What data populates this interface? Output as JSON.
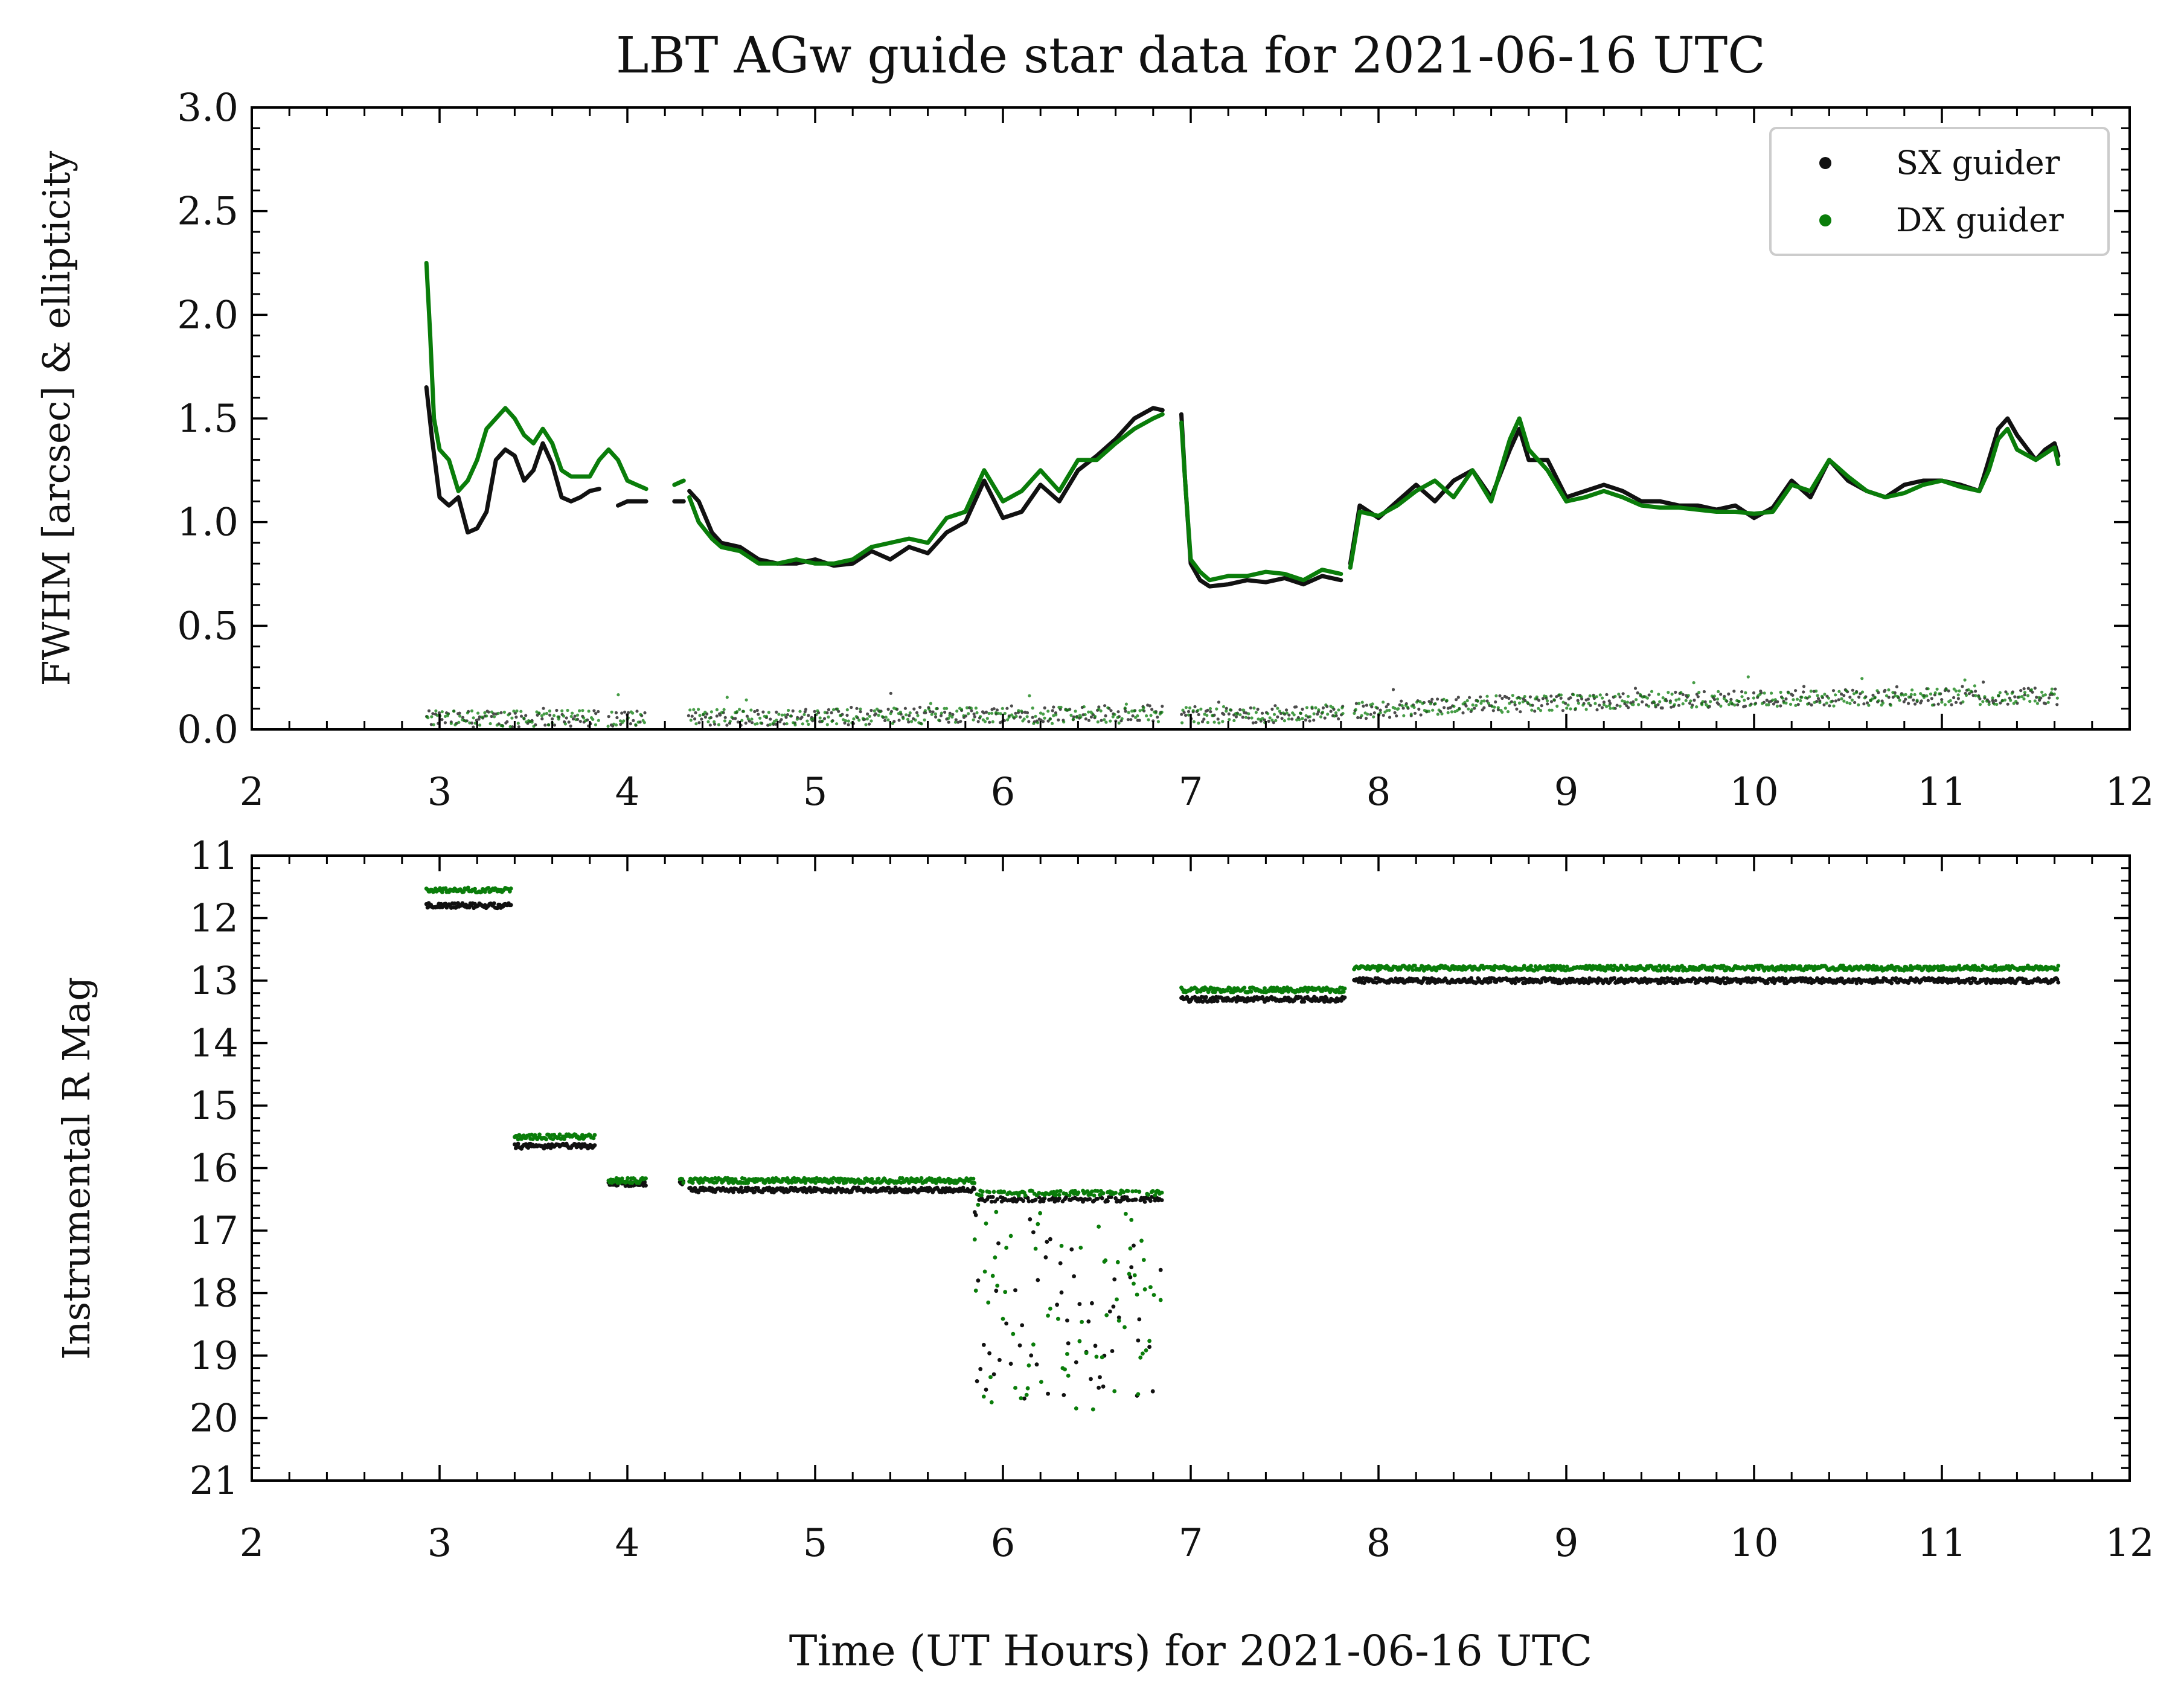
{
  "figure": {
    "title": "LBT AGw guide star data for 2021-06-16 UTC",
    "xlabel": "Time (UT Hours) for 2021-06-16 UTC"
  },
  "colors": {
    "sx": "#111111",
    "dx": "#0a7d0a",
    "legend_border": "#cccccc"
  },
  "legend": {
    "items": [
      {
        "label": "SX guider",
        "color": "#111111"
      },
      {
        "label": "DX guider",
        "color": "#0a7d0a"
      }
    ],
    "placement": "top-right"
  },
  "chart_data": [
    {
      "type": "line",
      "ylabel": "FWHM [arcsec] & ellipticity",
      "xlim": [
        2,
        12
      ],
      "ylim": [
        0,
        3.0
      ],
      "xticks": [
        2,
        3,
        4,
        5,
        6,
        7,
        8,
        9,
        10,
        11,
        12
      ],
      "yticks": [
        0.0,
        0.5,
        1.0,
        1.5,
        2.0,
        2.5,
        3.0
      ],
      "ytick_labels": [
        "0.0",
        "0.5",
        "1.0",
        "1.5",
        "2.0",
        "2.5",
        "3.0"
      ],
      "grid": false,
      "series": [
        {
          "name": "SX guider",
          "style": "line",
          "segments": [
            {
              "x": [
                2.93,
                2.96,
                3.0,
                3.05,
                3.1,
                3.15,
                3.2,
                3.25,
                3.3,
                3.35,
                3.4,
                3.45,
                3.5,
                3.55,
                3.6,
                3.65,
                3.7,
                3.75,
                3.8,
                3.85
              ],
              "y": [
                1.65,
                1.4,
                1.12,
                1.08,
                1.12,
                0.95,
                0.97,
                1.05,
                1.3,
                1.35,
                1.32,
                1.2,
                1.25,
                1.38,
                1.28,
                1.12,
                1.1,
                1.12,
                1.15,
                1.16
              ]
            },
            {
              "x": [
                3.95,
                4.0,
                4.1
              ],
              "y": [
                1.08,
                1.1,
                1.1
              ]
            },
            {
              "x": [
                4.25,
                4.3
              ],
              "y": [
                1.1,
                1.1
              ]
            },
            {
              "x": [
                4.33,
                4.38,
                4.45,
                4.5,
                4.6,
                4.7,
                4.8,
                4.9,
                5.0,
                5.1,
                5.2,
                5.3,
                5.4,
                5.5,
                5.6,
                5.7,
                5.8,
                5.9,
                6.0,
                6.1,
                6.2,
                6.3,
                6.4,
                6.5,
                6.6,
                6.7,
                6.8,
                6.85
              ],
              "y": [
                1.15,
                1.1,
                0.95,
                0.9,
                0.88,
                0.82,
                0.8,
                0.8,
                0.82,
                0.79,
                0.8,
                0.86,
                0.82,
                0.88,
                0.85,
                0.95,
                1.0,
                1.2,
                1.02,
                1.05,
                1.18,
                1.1,
                1.25,
                1.32,
                1.4,
                1.5,
                1.55,
                1.54
              ]
            },
            {
              "x": [
                6.95,
                6.97,
                7.0,
                7.05,
                7.1,
                7.2,
                7.3,
                7.4,
                7.5,
                7.6,
                7.7,
                7.8
              ],
              "y": [
                1.52,
                1.2,
                0.8,
                0.72,
                0.69,
                0.7,
                0.72,
                0.71,
                0.73,
                0.7,
                0.74,
                0.72
              ]
            },
            {
              "x": [
                7.85,
                7.9,
                8.0,
                8.1,
                8.2,
                8.3,
                8.4,
                8.5,
                8.6,
                8.7,
                8.75,
                8.8,
                8.9,
                9.0,
                9.1,
                9.2,
                9.3,
                9.4,
                9.5,
                9.6,
                9.7,
                9.8,
                9.9,
                10.0,
                10.1,
                10.2,
                10.3,
                10.4,
                10.5,
                10.6,
                10.7,
                10.8,
                10.9,
                11.0,
                11.1,
                11.2,
                11.25,
                11.3,
                11.35,
                11.4,
                11.5,
                11.55,
                11.6,
                11.62
              ],
              "y": [
                0.8,
                1.08,
                1.02,
                1.1,
                1.18,
                1.1,
                1.2,
                1.25,
                1.12,
                1.35,
                1.45,
                1.3,
                1.3,
                1.12,
                1.15,
                1.18,
                1.15,
                1.1,
                1.1,
                1.08,
                1.08,
                1.06,
                1.08,
                1.02,
                1.07,
                1.2,
                1.12,
                1.3,
                1.2,
                1.15,
                1.12,
                1.18,
                1.2,
                1.2,
                1.18,
                1.15,
                1.3,
                1.45,
                1.5,
                1.42,
                1.3,
                1.35,
                1.38,
                1.32
              ]
            }
          ]
        },
        {
          "name": "DX guider",
          "style": "line",
          "segments": [
            {
              "x": [
                2.93,
                2.95,
                2.97,
                3.0,
                3.05,
                3.1,
                3.15,
                3.2,
                3.25,
                3.3,
                3.35,
                3.4,
                3.45,
                3.5,
                3.55,
                3.6,
                3.65,
                3.7,
                3.75,
                3.8,
                3.85,
                3.9,
                3.95,
                4.0,
                4.05,
                4.1
              ],
              "y": [
                2.25,
                1.9,
                1.5,
                1.35,
                1.3,
                1.15,
                1.2,
                1.3,
                1.45,
                1.5,
                1.55,
                1.5,
                1.42,
                1.38,
                1.45,
                1.38,
                1.25,
                1.22,
                1.22,
                1.22,
                1.3,
                1.35,
                1.3,
                1.2,
                1.18,
                1.16
              ]
            },
            {
              "x": [
                4.25,
                4.3
              ],
              "y": [
                1.18,
                1.2
              ]
            },
            {
              "x": [
                4.33,
                4.38,
                4.45,
                4.5,
                4.6,
                4.7,
                4.8,
                4.9,
                5.0,
                5.1,
                5.2,
                5.3,
                5.4,
                5.5,
                5.6,
                5.7,
                5.8,
                5.9,
                6.0,
                6.1,
                6.2,
                6.3,
                6.4,
                6.5,
                6.6,
                6.7,
                6.8,
                6.85
              ],
              "y": [
                1.12,
                1.0,
                0.92,
                0.88,
                0.86,
                0.8,
                0.8,
                0.82,
                0.8,
                0.8,
                0.82,
                0.88,
                0.9,
                0.92,
                0.9,
                1.02,
                1.05,
                1.25,
                1.1,
                1.15,
                1.25,
                1.15,
                1.3,
                1.3,
                1.38,
                1.45,
                1.5,
                1.52
              ]
            },
            {
              "x": [
                6.95,
                6.97,
                7.0,
                7.05,
                7.1,
                7.2,
                7.3,
                7.4,
                7.5,
                7.6,
                7.7,
                7.8
              ],
              "y": [
                1.48,
                1.2,
                0.82,
                0.76,
                0.72,
                0.74,
                0.74,
                0.76,
                0.75,
                0.72,
                0.77,
                0.75
              ]
            },
            {
              "x": [
                7.85,
                7.9,
                8.0,
                8.1,
                8.2,
                8.3,
                8.4,
                8.5,
                8.6,
                8.7,
                8.75,
                8.8,
                8.9,
                9.0,
                9.1,
                9.2,
                9.3,
                9.4,
                9.5,
                9.6,
                9.7,
                9.8,
                9.9,
                10.0,
                10.1,
                10.2,
                10.3,
                10.4,
                10.5,
                10.6,
                10.7,
                10.8,
                10.9,
                11.0,
                11.1,
                11.2,
                11.25,
                11.3,
                11.35,
                11.4,
                11.5,
                11.55,
                11.6,
                11.62
              ],
              "y": [
                0.78,
                1.05,
                1.03,
                1.08,
                1.15,
                1.2,
                1.12,
                1.25,
                1.1,
                1.4,
                1.5,
                1.35,
                1.25,
                1.1,
                1.12,
                1.15,
                1.12,
                1.08,
                1.07,
                1.07,
                1.06,
                1.05,
                1.05,
                1.04,
                1.05,
                1.18,
                1.15,
                1.3,
                1.22,
                1.15,
                1.12,
                1.14,
                1.18,
                1.2,
                1.17,
                1.15,
                1.25,
                1.4,
                1.45,
                1.35,
                1.3,
                1.33,
                1.36,
                1.28
              ]
            }
          ]
        },
        {
          "name": "SX ellipticity",
          "style": "scatter",
          "ranges": [
            [
              2.93,
              3.85
            ],
            [
              3.9,
              4.1
            ],
            [
              4.33,
              6.85
            ],
            [
              6.95,
              7.82
            ],
            [
              7.87,
              11.62
            ]
          ],
          "baseline": [
            [
              3.0,
              0.05
            ],
            [
              5.0,
              0.06
            ],
            [
              6.5,
              0.08
            ],
            [
              7.5,
              0.07
            ],
            [
              8.5,
              0.12
            ],
            [
              10.0,
              0.15
            ],
            [
              11.5,
              0.16
            ]
          ],
          "spread": 0.04
        },
        {
          "name": "DX ellipticity",
          "style": "scatter",
          "ranges": [
            [
              2.93,
              3.85
            ],
            [
              3.9,
              4.1
            ],
            [
              4.33,
              6.85
            ],
            [
              6.95,
              7.82
            ],
            [
              7.87,
              11.62
            ]
          ],
          "baseline": [
            [
              3.0,
              0.05
            ],
            [
              5.0,
              0.06
            ],
            [
              6.5,
              0.07
            ],
            [
              7.5,
              0.07
            ],
            [
              8.5,
              0.12
            ],
            [
              10.0,
              0.15
            ],
            [
              11.5,
              0.16
            ]
          ],
          "spread": 0.04
        }
      ]
    },
    {
      "type": "scatter",
      "ylabel": "Instrumental R Mag",
      "xlim": [
        2,
        12
      ],
      "ylim": [
        21,
        11
      ],
      "yaxis_inverted": true,
      "xticks": [
        2,
        3,
        4,
        5,
        6,
        7,
        8,
        9,
        10,
        11,
        12
      ],
      "yticks": [
        11,
        12,
        13,
        14,
        15,
        16,
        17,
        18,
        19,
        20,
        21
      ],
      "grid": false,
      "series": [
        {
          "name": "SX guider",
          "segments": [
            {
              "x_range": [
                2.93,
                3.38
              ],
              "y": 11.8
            },
            {
              "x_range": [
                3.4,
                3.83
              ],
              "y": 15.65
            },
            {
              "x_range": [
                3.9,
                4.1
              ],
              "y": 16.25
            },
            {
              "x_range": [
                4.28,
                4.3
              ],
              "y": 16.25
            },
            {
              "x_range": [
                4.33,
                5.85
              ],
              "y": 16.35
            },
            {
              "x_range": [
                5.85,
                6.85
              ],
              "y": 16.5,
              "scatter_to": 19.7
            },
            {
              "x_range": [
                6.95,
                7.82
              ],
              "y": 13.3
            },
            {
              "x_range": [
                7.87,
                11.62
              ],
              "y": 13.0
            }
          ]
        },
        {
          "name": "DX guider",
          "segments": [
            {
              "x_range": [
                2.93,
                3.38
              ],
              "y": 11.55
            },
            {
              "x_range": [
                3.4,
                3.83
              ],
              "y": 15.5
            },
            {
              "x_range": [
                3.9,
                4.1
              ],
              "y": 16.2
            },
            {
              "x_range": [
                4.28,
                4.3
              ],
              "y": 16.2
            },
            {
              "x_range": [
                4.33,
                5.85
              ],
              "y": 16.2
            },
            {
              "x_range": [
                5.85,
                6.85
              ],
              "y": 16.4,
              "scatter_to": 19.9
            },
            {
              "x_range": [
                6.95,
                7.82
              ],
              "y": 13.15
            },
            {
              "x_range": [
                7.87,
                11.62
              ],
              "y": 12.8
            }
          ]
        }
      ]
    }
  ]
}
